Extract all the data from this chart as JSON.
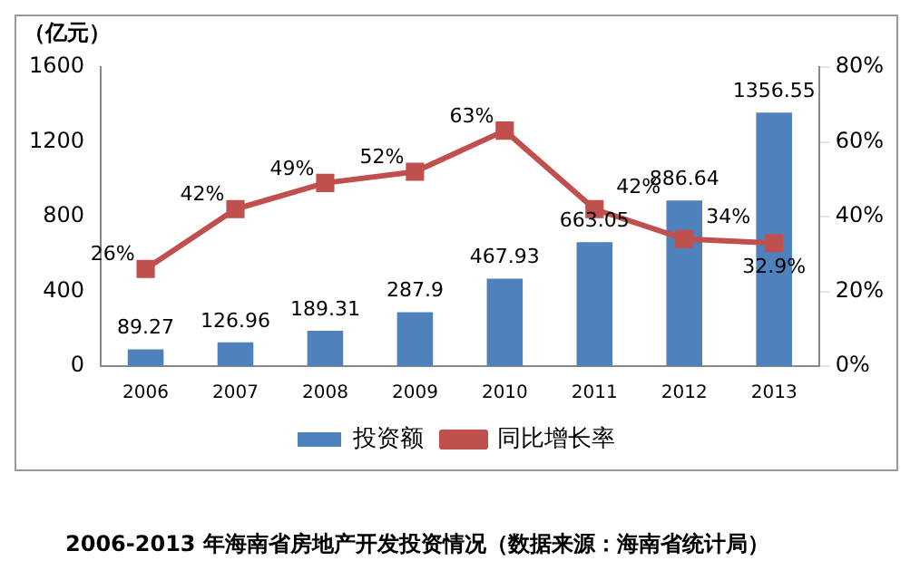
{
  "chart_data": {
    "type": "bar",
    "title": "2006-2013 年海南省房地产开发投资情况（数据来源：海南省统计局）",
    "ylabel": "（亿元）",
    "categories": [
      "2006",
      "2007",
      "2008",
      "2009",
      "2010",
      "2011",
      "2012",
      "2013"
    ],
    "series": [
      {
        "name": "投资额",
        "color": "#4f81bd",
        "values": [
          89.27,
          126.96,
          189.31,
          287.9,
          467.93,
          663.05,
          886.64,
          1356.55
        ]
      },
      {
        "name": "同比增长率",
        "type": "line",
        "axis": "y2",
        "color": "#c0504d",
        "marker": "square",
        "values": [
          26,
          42,
          49,
          52,
          63,
          42,
          34,
          32.9
        ],
        "value_labels": [
          "26%",
          "42%",
          "49%",
          "52%",
          "63%",
          "42%",
          "34%",
          "32.9%"
        ]
      }
    ],
    "ylim": [
      0,
      1600
    ],
    "yticks": [
      0,
      400,
      800,
      1200,
      1600
    ],
    "y2lim": [
      0,
      80
    ],
    "y2ticks": [
      {
        "value": 0,
        "label": "0%"
      },
      {
        "value": 20,
        "label": "20%"
      },
      {
        "value": 40,
        "label": "40%"
      },
      {
        "value": 60,
        "label": "60%"
      },
      {
        "value": 80,
        "label": "80%"
      }
    ],
    "data_labels": true,
    "grid": false,
    "legend": "bottom"
  }
}
